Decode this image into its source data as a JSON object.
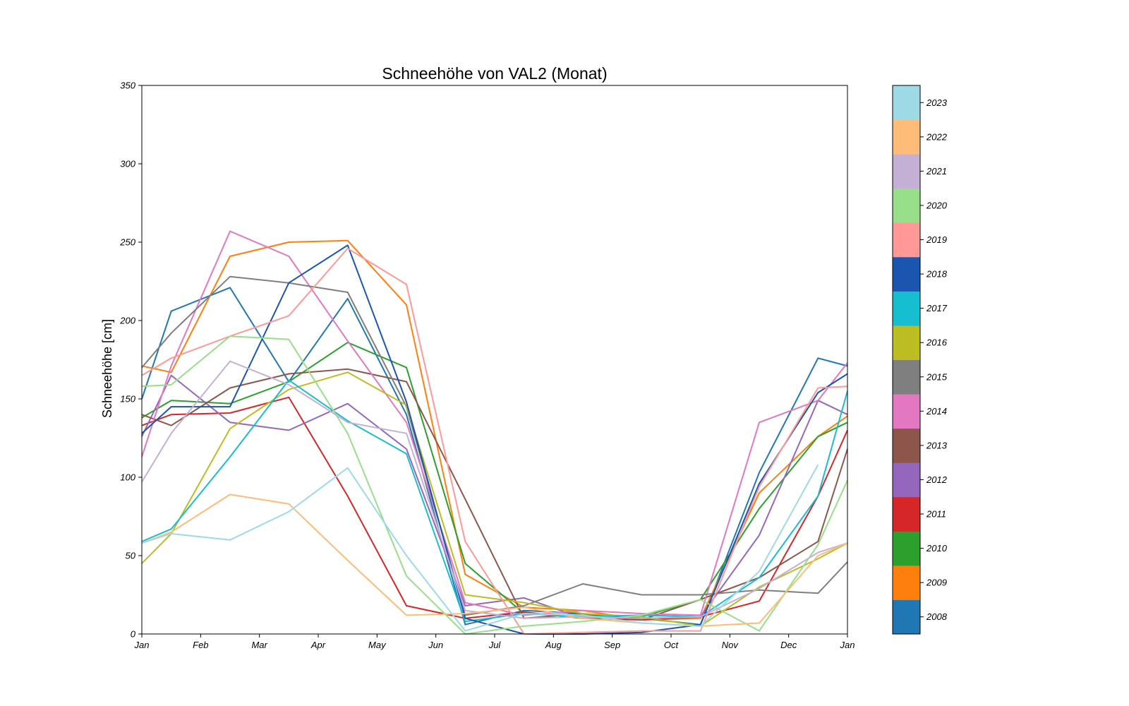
{
  "chart_data": {
    "type": "line",
    "title": "Schneehöhe von VAL2 (Monat)",
    "xlabel": "",
    "ylabel": "Schneehöhe [cm]",
    "ylim": [
      0,
      350
    ],
    "yticks": [
      0,
      50,
      100,
      150,
      200,
      250,
      300,
      350
    ],
    "xlim": [
      1,
      13
    ],
    "xticks": [
      {
        "pos": 1,
        "label": "Jan"
      },
      {
        "pos": 2,
        "label": "Feb"
      },
      {
        "pos": 3,
        "label": "Mar"
      },
      {
        "pos": 4,
        "label": "Apr"
      },
      {
        "pos": 5,
        "label": "May"
      },
      {
        "pos": 6,
        "label": "Jun"
      },
      {
        "pos": 7,
        "label": "Jul"
      },
      {
        "pos": 8,
        "label": "Aug"
      },
      {
        "pos": 9,
        "label": "Sep"
      },
      {
        "pos": 10,
        "label": "Oct"
      },
      {
        "pos": 11,
        "label": "Nov"
      },
      {
        "pos": 12,
        "label": "Dec"
      },
      {
        "pos": 13,
        "label": "Jan"
      }
    ],
    "grid": false,
    "legend": "colorbar-right",
    "x": [
      1,
      1.5,
      2.5,
      3.5,
      4.5,
      5.5,
      6.5,
      7.5,
      8.5,
      9.5,
      10.5,
      11.5,
      12.5,
      13
    ],
    "series": [
      {
        "name": "2008",
        "color": "#1f77b4",
        "values": [
          150,
          206,
          221,
          161,
          214,
          140,
          6,
          15,
          13,
          10,
          6,
          103,
          176,
          171
        ]
      },
      {
        "name": "2009",
        "color": "#ff7f0e",
        "values": [
          171,
          167,
          241,
          250,
          251,
          210,
          38,
          17,
          15,
          9,
          10,
          90,
          126,
          139
        ]
      },
      {
        "name": "2010",
        "color": "#2ca02c",
        "values": [
          138,
          149,
          147,
          161,
          186,
          170,
          45,
          13,
          12,
          11,
          22,
          80,
          126,
          135
        ]
      },
      {
        "name": "2011",
        "color": "#d62728",
        "values": [
          133,
          140,
          141,
          151,
          88,
          18,
          10,
          14,
          10,
          9,
          11,
          21,
          88,
          130
        ]
      },
      {
        "name": "2012",
        "color": "#9467bd",
        "values": [
          126,
          165,
          135,
          130,
          147,
          118,
          18,
          23,
          10,
          12,
          11,
          63,
          149,
          140
        ]
      },
      {
        "name": "2013",
        "color": "#8c564b",
        "values": [
          140,
          133,
          157,
          166,
          169,
          161,
          86,
          10,
          13,
          9,
          22,
          36,
          59,
          118
        ]
      },
      {
        "name": "2014",
        "color": "#e377c2",
        "values": [
          113,
          171,
          257,
          241,
          187,
          135,
          20,
          12,
          15,
          13,
          12,
          135,
          149,
          173
        ]
      },
      {
        "name": "2015",
        "color": "#7f7f7f",
        "values": [
          170,
          192,
          228,
          224,
          218,
          145,
          12,
          18,
          32,
          25,
          25,
          28,
          26,
          46
        ]
      },
      {
        "name": "2016",
        "color": "#bcbd22",
        "values": [
          45,
          64,
          131,
          156,
          167,
          146,
          25,
          20,
          13,
          11,
          5,
          30,
          48,
          58
        ]
      },
      {
        "name": "2017",
        "color": "#17becf",
        "values": [
          59,
          67,
          113,
          162,
          136,
          115,
          8,
          13,
          11,
          12,
          11,
          36,
          88,
          155
        ]
      },
      {
        "name": "2018",
        "color": "#1a55b0",
        "values": [
          128,
          145,
          145,
          224,
          248,
          148,
          10,
          0,
          0,
          1,
          6,
          96,
          154,
          166
        ]
      },
      {
        "name": "2019",
        "color": "#ff9896",
        "values": [
          165,
          176,
          190,
          203,
          246,
          223,
          59,
          0,
          1,
          2,
          2,
          94,
          157,
          158
        ]
      },
      {
        "name": "2020",
        "color": "#98df8a",
        "values": [
          158,
          159,
          190,
          188,
          128,
          37,
          0,
          5,
          8,
          12,
          22,
          2,
          57,
          98
        ]
      },
      {
        "name": "2021",
        "color": "#c5b0d5",
        "values": [
          97,
          128,
          174,
          159,
          135,
          128,
          15,
          10,
          11,
          10,
          11,
          29,
          52,
          58
        ]
      },
      {
        "name": "2022",
        "color": "#ffbb78",
        "values": [
          58,
          65,
          89,
          83,
          47,
          12,
          13,
          17,
          10,
          7,
          5,
          7,
          50,
          58
        ]
      },
      {
        "name": "2023",
        "color": "#9edae5",
        "values": [
          58,
          64,
          60,
          78,
          106,
          50,
          2,
          13,
          12,
          7,
          5,
          40,
          108,
          null
        ]
      }
    ]
  }
}
